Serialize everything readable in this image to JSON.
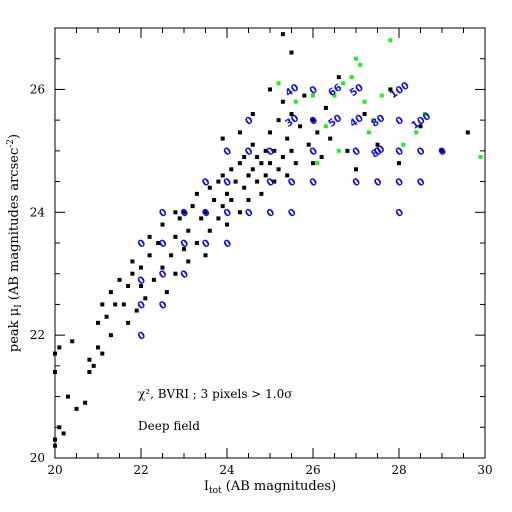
{
  "chart_data": {
    "type": "scatter",
    "xlabel": "I",
    "xlabel_sub": "tot",
    "xlabel_tail": " (AB magnitudes)",
    "ylabel": "peak μ",
    "ylabel_sub": "I",
    "ylabel_tail": " (AB magnitudes arcsec",
    "ylabel_sup": "-2",
    "ylabel_end": ")",
    "xlim": [
      20,
      30
    ],
    "ylim": [
      20,
      27
    ],
    "xticks": [
      20,
      22,
      24,
      26,
      28,
      30
    ],
    "yticks": [
      20,
      22,
      24,
      26
    ],
    "annotations": {
      "line1": "χ², BVRI ; 3 pixels > 1.0σ",
      "line2": "Deep field"
    },
    "colors": {
      "black": "#000000",
      "green": "#22ee22",
      "blue": "#1010d0"
    },
    "series": [
      {
        "marker": "black-square",
        "points": [
          [
            20.0,
            20.2
          ],
          [
            20.0,
            20.3
          ],
          [
            20.1,
            20.5
          ],
          [
            20.2,
            20.4
          ],
          [
            20.3,
            21.0
          ],
          [
            20.0,
            21.4
          ],
          [
            20.0,
            21.7
          ],
          [
            20.1,
            21.8
          ],
          [
            20.4,
            21.9
          ],
          [
            20.5,
            20.8
          ],
          [
            20.7,
            20.9
          ],
          [
            20.8,
            21.4
          ],
          [
            20.8,
            21.6
          ],
          [
            20.9,
            21.5
          ],
          [
            21.0,
            21.8
          ],
          [
            21.0,
            22.2
          ],
          [
            21.1,
            22.5
          ],
          [
            21.1,
            21.7
          ],
          [
            21.2,
            22.3
          ],
          [
            21.3,
            22.0
          ],
          [
            21.3,
            22.7
          ],
          [
            21.5,
            22.9
          ],
          [
            21.6,
            22.5
          ],
          [
            21.7,
            22.2
          ],
          [
            21.7,
            22.8
          ],
          [
            21.8,
            23.0
          ],
          [
            21.9,
            22.4
          ],
          [
            22.0,
            22.8
          ],
          [
            22.0,
            23.1
          ],
          [
            22.1,
            22.6
          ],
          [
            22.2,
            23.3
          ],
          [
            22.3,
            22.9
          ],
          [
            22.4,
            23.5
          ],
          [
            22.5,
            23.1
          ],
          [
            22.5,
            23.8
          ],
          [
            22.6,
            22.7
          ],
          [
            22.7,
            23.3
          ],
          [
            22.8,
            23.6
          ],
          [
            22.8,
            23.0
          ],
          [
            22.9,
            23.9
          ],
          [
            23.0,
            23.4
          ],
          [
            23.0,
            24.0
          ],
          [
            23.1,
            23.2
          ],
          [
            23.1,
            23.7
          ],
          [
            23.2,
            24.1
          ],
          [
            23.3,
            23.5
          ],
          [
            23.3,
            24.3
          ],
          [
            23.4,
            23.9
          ],
          [
            23.5,
            23.3
          ],
          [
            23.5,
            24.0
          ],
          [
            23.6,
            24.4
          ],
          [
            23.6,
            23.7
          ],
          [
            23.7,
            24.2
          ],
          [
            23.8,
            24.5
          ],
          [
            23.8,
            23.9
          ],
          [
            23.9,
            24.1
          ],
          [
            23.9,
            24.6
          ],
          [
            24.0,
            24.3
          ],
          [
            24.0,
            23.8
          ],
          [
            24.1,
            24.7
          ],
          [
            24.1,
            24.2
          ],
          [
            24.2,
            24.5
          ],
          [
            24.3,
            24.0
          ],
          [
            24.3,
            24.8
          ],
          [
            24.4,
            24.4
          ],
          [
            24.4,
            24.9
          ],
          [
            24.5,
            24.6
          ],
          [
            24.5,
            24.2
          ],
          [
            24.6,
            24.7
          ],
          [
            24.6,
            25.1
          ],
          [
            24.7,
            24.5
          ],
          [
            24.7,
            24.9
          ],
          [
            24.8,
            24.3
          ],
          [
            24.8,
            24.8
          ],
          [
            24.9,
            25.0
          ],
          [
            24.9,
            24.6
          ],
          [
            25.0,
            24.8
          ],
          [
            25.0,
            25.3
          ],
          [
            25.1,
            24.5
          ],
          [
            25.1,
            25.0
          ],
          [
            25.2,
            24.7
          ],
          [
            25.2,
            25.5
          ],
          [
            25.3,
            24.9
          ],
          [
            25.3,
            25.8
          ],
          [
            25.4,
            25.2
          ],
          [
            25.4,
            24.6
          ],
          [
            25.5,
            25.0
          ],
          [
            25.5,
            25.6
          ],
          [
            25.6,
            24.8
          ],
          [
            25.7,
            25.4
          ],
          [
            25.8,
            25.9
          ],
          [
            25.9,
            25.1
          ],
          [
            26.0,
            25.5
          ],
          [
            26.0,
            24.8
          ],
          [
            26.1,
            25.3
          ],
          [
            26.2,
            24.9
          ],
          [
            26.3,
            25.7
          ],
          [
            26.4,
            25.2
          ],
          [
            26.6,
            26.2
          ],
          [
            26.8,
            25.0
          ],
          [
            27.0,
            24.7
          ],
          [
            27.2,
            25.6
          ],
          [
            27.5,
            25.1
          ],
          [
            27.8,
            26.0
          ],
          [
            28.0,
            24.8
          ],
          [
            28.5,
            25.4
          ],
          [
            29.0,
            25.0
          ],
          [
            29.6,
            25.3
          ],
          [
            25.3,
            26.9
          ],
          [
            25.5,
            26.6
          ],
          [
            25.0,
            26.0
          ],
          [
            24.6,
            25.6
          ],
          [
            24.3,
            25.3
          ],
          [
            23.9,
            25.2
          ],
          [
            22.8,
            24.0
          ],
          [
            22.2,
            23.6
          ],
          [
            21.8,
            23.2
          ],
          [
            21.4,
            22.5
          ]
        ]
      },
      {
        "marker": "green-square",
        "points": [
          [
            25.2,
            26.1
          ],
          [
            25.6,
            25.8
          ],
          [
            26.0,
            25.9
          ],
          [
            26.3,
            25.4
          ],
          [
            26.5,
            25.9
          ],
          [
            26.7,
            26.1
          ],
          [
            26.9,
            26.2
          ],
          [
            27.0,
            26.5
          ],
          [
            27.1,
            26.4
          ],
          [
            27.2,
            25.8
          ],
          [
            27.4,
            25.5
          ],
          [
            27.6,
            25.9
          ],
          [
            27.8,
            26.8
          ],
          [
            28.1,
            25.1
          ],
          [
            28.4,
            25.3
          ],
          [
            28.6,
            25.6
          ],
          [
            29.9,
            24.9
          ],
          [
            26.1,
            24.8
          ],
          [
            26.6,
            25.0
          ],
          [
            27.3,
            25.3
          ]
        ]
      },
      {
        "marker": "blue-label",
        "points": [
          [
            22.0,
            22.0,
            "0"
          ],
          [
            22.0,
            22.5,
            "0"
          ],
          [
            22.0,
            22.9,
            "0"
          ],
          [
            22.0,
            23.5,
            "0"
          ],
          [
            22.5,
            22.5,
            "0"
          ],
          [
            22.5,
            23.0,
            "0"
          ],
          [
            22.5,
            23.5,
            "0"
          ],
          [
            22.5,
            24.0,
            "0"
          ],
          [
            23.0,
            23.0,
            "0"
          ],
          [
            23.0,
            23.5,
            "0"
          ],
          [
            23.0,
            24.0,
            "0"
          ],
          [
            23.5,
            23.5,
            "0"
          ],
          [
            23.5,
            24.0,
            "0"
          ],
          [
            23.5,
            24.5,
            "0"
          ],
          [
            24.0,
            23.5,
            "0"
          ],
          [
            24.0,
            24.0,
            "0"
          ],
          [
            24.0,
            24.5,
            "0"
          ],
          [
            24.0,
            25.0,
            "0"
          ],
          [
            24.5,
            24.0,
            "0"
          ],
          [
            24.5,
            25.0,
            "0"
          ],
          [
            24.5,
            25.5,
            "0"
          ],
          [
            25.0,
            24.0,
            "0"
          ],
          [
            25.0,
            24.5,
            "0"
          ],
          [
            25.0,
            25.0,
            "0"
          ],
          [
            25.5,
            24.0,
            "0"
          ],
          [
            25.5,
            24.5,
            "0"
          ],
          [
            25.5,
            25.5,
            "30"
          ],
          [
            25.5,
            26.0,
            "40"
          ],
          [
            26.0,
            24.5,
            "0"
          ],
          [
            26.0,
            25.0,
            "0"
          ],
          [
            26.0,
            25.5,
            "0"
          ],
          [
            26.0,
            26.0,
            "0"
          ],
          [
            26.5,
            25.5,
            "50"
          ],
          [
            26.5,
            26.0,
            "66"
          ],
          [
            27.0,
            24.5,
            "0"
          ],
          [
            27.0,
            25.0,
            "0"
          ],
          [
            27.0,
            25.5,
            "40"
          ],
          [
            27.0,
            26.0,
            "50"
          ],
          [
            27.5,
            24.5,
            "0"
          ],
          [
            27.5,
            25.0,
            "0"
          ],
          [
            27.5,
            25.5,
            "80"
          ],
          [
            27.5,
            25.0,
            "80"
          ],
          [
            28.0,
            24.0,
            "0"
          ],
          [
            28.0,
            24.5,
            "0"
          ],
          [
            28.0,
            25.0,
            "0"
          ],
          [
            28.0,
            25.5,
            "0"
          ],
          [
            28.0,
            26.0,
            "100"
          ],
          [
            28.5,
            24.5,
            "0"
          ],
          [
            28.5,
            25.0,
            "0"
          ],
          [
            28.5,
            25.5,
            "100"
          ],
          [
            29.0,
            25.0,
            "0"
          ]
        ]
      }
    ]
  }
}
